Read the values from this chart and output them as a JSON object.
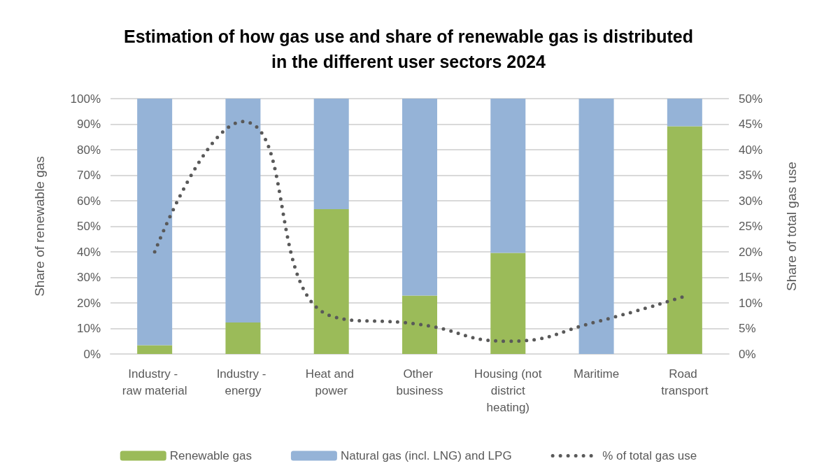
{
  "chart_data": {
    "type": "bar",
    "title": "Estimation of how gas use and share of renewable gas is distributed in the different user sectors 2024",
    "ylabel": "Share of renewable gas",
    "y2label": "Share of total gas use",
    "categories": [
      "Industry - raw material",
      "Industry - energy",
      "Heat and power",
      "Other business",
      "Housing (not district heating)",
      "Maritime",
      "Road transport"
    ],
    "stacked": true,
    "series": [
      {
        "name": "Renewable gas",
        "color": "#9bbb59",
        "values": [
          3.4,
          12.3,
          56.7,
          22.9,
          39.6,
          0,
          89.2
        ]
      },
      {
        "name": "Natural gas (incl. LNG) and LPG",
        "color": "#95b3d7",
        "values": [
          96.6,
          87.7,
          43.3,
          77.1,
          60.4,
          100,
          10.8
        ]
      },
      {
        "name": "% of total gas use",
        "type": "line",
        "axis": "y2",
        "color": "#595959",
        "values": [
          20.0,
          45.5,
          7.4,
          5.8,
          2.5,
          6.3,
          11.3
        ]
      }
    ],
    "line_style": "dotted",
    "marker": "none",
    "ylim": [
      0,
      100
    ],
    "yticks": [
      {
        "value": 0,
        "label": "0%"
      },
      {
        "value": 10,
        "label": "10%"
      },
      {
        "value": 20,
        "label": "20%"
      },
      {
        "value": 30,
        "label": "30%"
      },
      {
        "value": 40,
        "label": "40%"
      },
      {
        "value": 50,
        "label": "50%"
      },
      {
        "value": 60,
        "label": "60%"
      },
      {
        "value": 70,
        "label": "70%"
      },
      {
        "value": 80,
        "label": "80%"
      },
      {
        "value": 90,
        "label": "90%"
      },
      {
        "value": 100,
        "label": "100%"
      }
    ],
    "y2lim": [
      0,
      50
    ],
    "y2ticks": [
      {
        "value": 0,
        "label": "0%"
      },
      {
        "value": 5,
        "label": "5%"
      },
      {
        "value": 10,
        "label": "10%"
      },
      {
        "value": 15,
        "label": "15%"
      },
      {
        "value": 20,
        "label": "20%"
      },
      {
        "value": 25,
        "label": "25%"
      },
      {
        "value": 30,
        "label": "30%"
      },
      {
        "value": 35,
        "label": "35%"
      },
      {
        "value": 40,
        "label": "40%"
      },
      {
        "value": 45,
        "label": "45%"
      },
      {
        "value": 50,
        "label": "50%"
      }
    ],
    "grid": "y",
    "legend": "bottom"
  }
}
